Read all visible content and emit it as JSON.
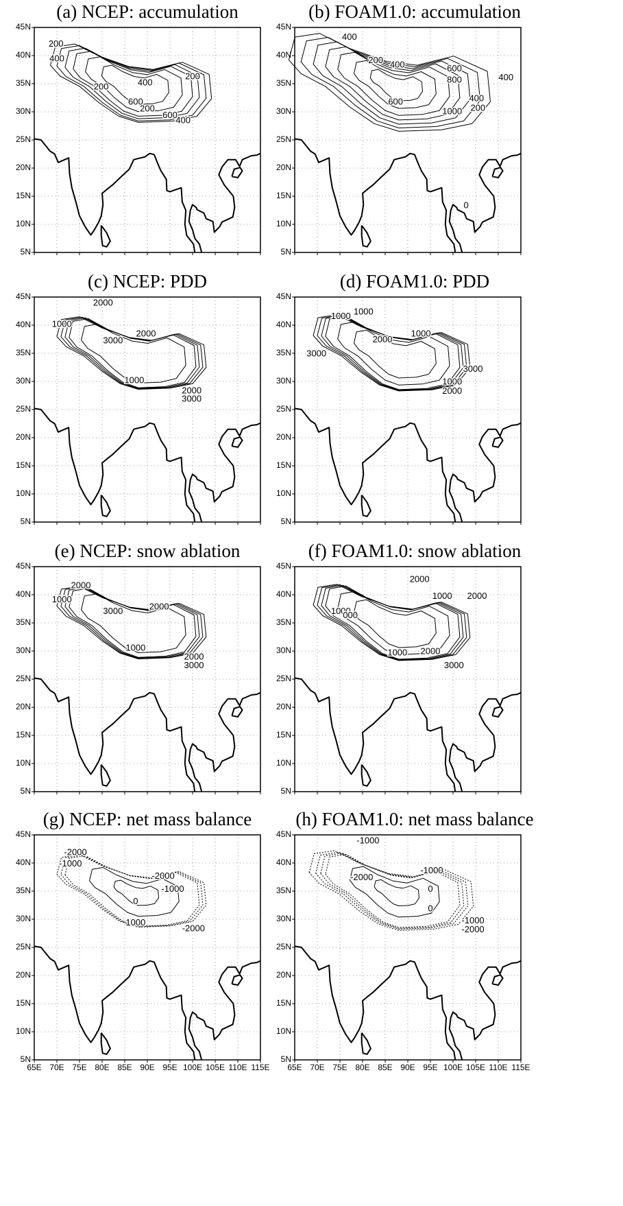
{
  "lat_labels": [
    "45N",
    "40N",
    "35N",
    "30N",
    "25N",
    "20N",
    "15N",
    "10N",
    "5N"
  ],
  "lon_labels": [
    "65E",
    "70E",
    "75E",
    "80E",
    "85E",
    "90E",
    "95E",
    "100E",
    "105E",
    "110E",
    "115E"
  ],
  "panels": [
    {
      "title": "(a) NCEP: accumulation",
      "contour_labels": [
        "200",
        "400",
        "200",
        "400",
        "200",
        "600",
        "200",
        "600",
        "400"
      ]
    },
    {
      "title": "(b) FOAM1.0: accumulation",
      "contour_labels": [
        "400",
        "200",
        "400",
        "600",
        "800",
        "400",
        "600",
        "400",
        "200",
        "1000",
        "0"
      ]
    },
    {
      "title": "(c) NCEP: PDD",
      "contour_labels": [
        "2000",
        "1000",
        "3000",
        "2000",
        "1000",
        "2000",
        "3000"
      ]
    },
    {
      "title": "(d) FOAM1.0: PDD",
      "contour_labels": [
        "1000",
        "1000",
        "2000",
        "1000",
        "3000",
        "3000",
        "1000",
        "2000"
      ]
    },
    {
      "title": "(e) NCEP: snow ablation",
      "contour_labels": [
        "2000",
        "1000",
        "3000",
        "2000",
        "1000",
        "2000",
        "3000"
      ]
    },
    {
      "title": "(f) FOAM1.0: snow ablation",
      "contour_labels": [
        "2000",
        "1000",
        "2000",
        "1000",
        "000",
        "1000",
        "2000",
        "3000"
      ]
    },
    {
      "title": "(g) NCEP: net mass balance",
      "contour_labels": [
        "-2000",
        "-1000",
        "-2000",
        "-1000",
        "0",
        "1000",
        "-2000"
      ]
    },
    {
      "title": "(h) FOAM1.0: net mass balance",
      "contour_labels": [
        "-1000",
        "-2000",
        "-1000",
        "0",
        "0",
        "-1000",
        "-2000"
      ]
    }
  ]
}
